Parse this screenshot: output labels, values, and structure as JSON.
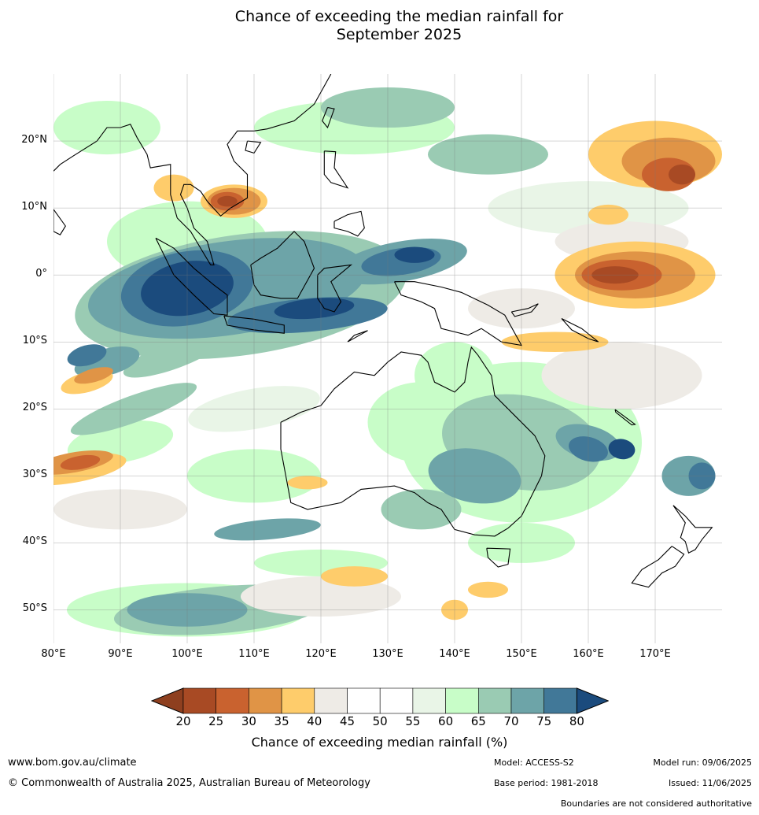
{
  "title": {
    "line1": "Chance of exceeding the median rainfall for",
    "line2": "September 2025"
  },
  "map": {
    "lon_range": [
      80,
      180
    ],
    "lat_range": [
      -55,
      30
    ],
    "lat_ticks": [
      "20°N",
      "10°N",
      "0°",
      "10°S",
      "20°S",
      "30°S",
      "40°S",
      "50°S"
    ],
    "lon_ticks": [
      "80°E",
      "90°E",
      "100°E",
      "110°E",
      "120°E",
      "130°E",
      "140°E",
      "150°E",
      "160°E",
      "170°E"
    ],
    "grid": true
  },
  "colorbar": {
    "ticks": [
      "20",
      "25",
      "30",
      "35",
      "40",
      "45",
      "50",
      "55",
      "60",
      "65",
      "70",
      "75",
      "80"
    ],
    "colors": [
      "#8e3f1f",
      "#a84a24",
      "#c9622f",
      "#e09446",
      "#fecc6b",
      "#eeebe6",
      "#ffffff",
      "#ffffff",
      "#e9f5e7",
      "#c8fdc8",
      "#9acbb3",
      "#6da4a8",
      "#417898",
      "#1b4b7d"
    ],
    "label": "Chance of exceeding median rainfall (%)"
  },
  "footer": {
    "website": "www.bom.gov.au/climate",
    "copyright": "© Commonwealth of Australia 2025, Australian Bureau of Meteorology",
    "model": "Model: ACCESS-S2",
    "base_period": "Base period: 1981-2018",
    "model_run": "Model run: 09/06/2025",
    "issued": "Issued: 11/06/2025",
    "boundaries": "Boundaries are not considered authoritative"
  }
}
